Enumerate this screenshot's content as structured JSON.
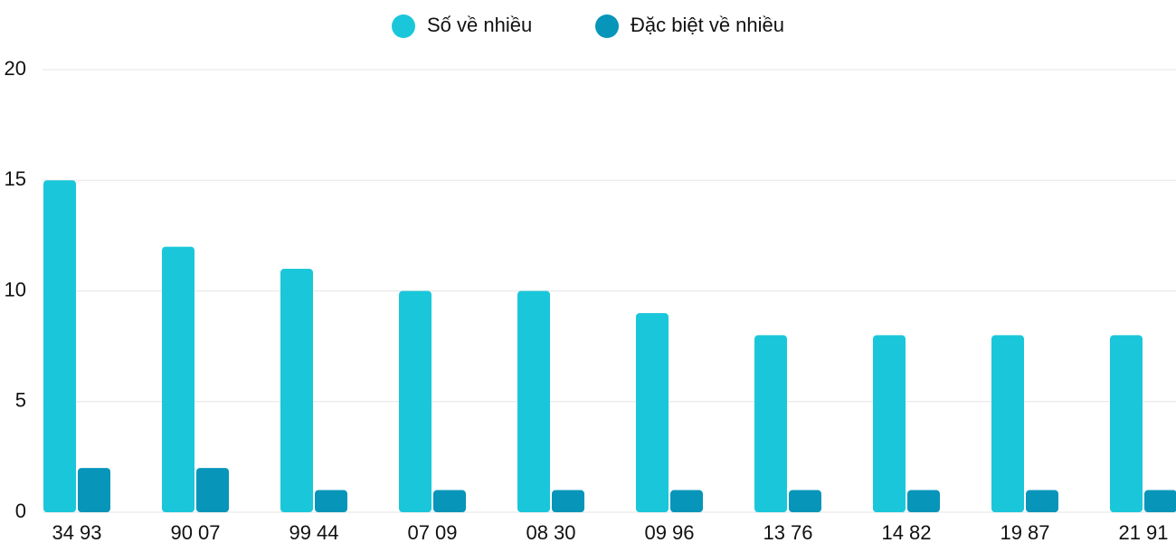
{
  "chart_data": {
    "type": "bar",
    "categories": [
      "34 93",
      "90 07",
      "99 44",
      "07 09",
      "08 30",
      "09 96",
      "13 76",
      "14 82",
      "19 87",
      "21 91"
    ],
    "series": [
      {
        "name": "Số về nhiều",
        "color": "#1ac7da",
        "values": [
          15,
          12,
          11,
          10,
          10,
          9,
          8,
          8,
          8,
          8
        ]
      },
      {
        "name": "Đặc biệt về nhiều",
        "color": "#0795b9",
        "values": [
          2,
          2,
          1,
          1,
          1,
          1,
          1,
          1,
          1,
          1
        ]
      }
    ],
    "ylim": [
      0,
      20
    ],
    "yticks": [
      0,
      5,
      10,
      15,
      20
    ],
    "grid": true,
    "legend": "top"
  }
}
